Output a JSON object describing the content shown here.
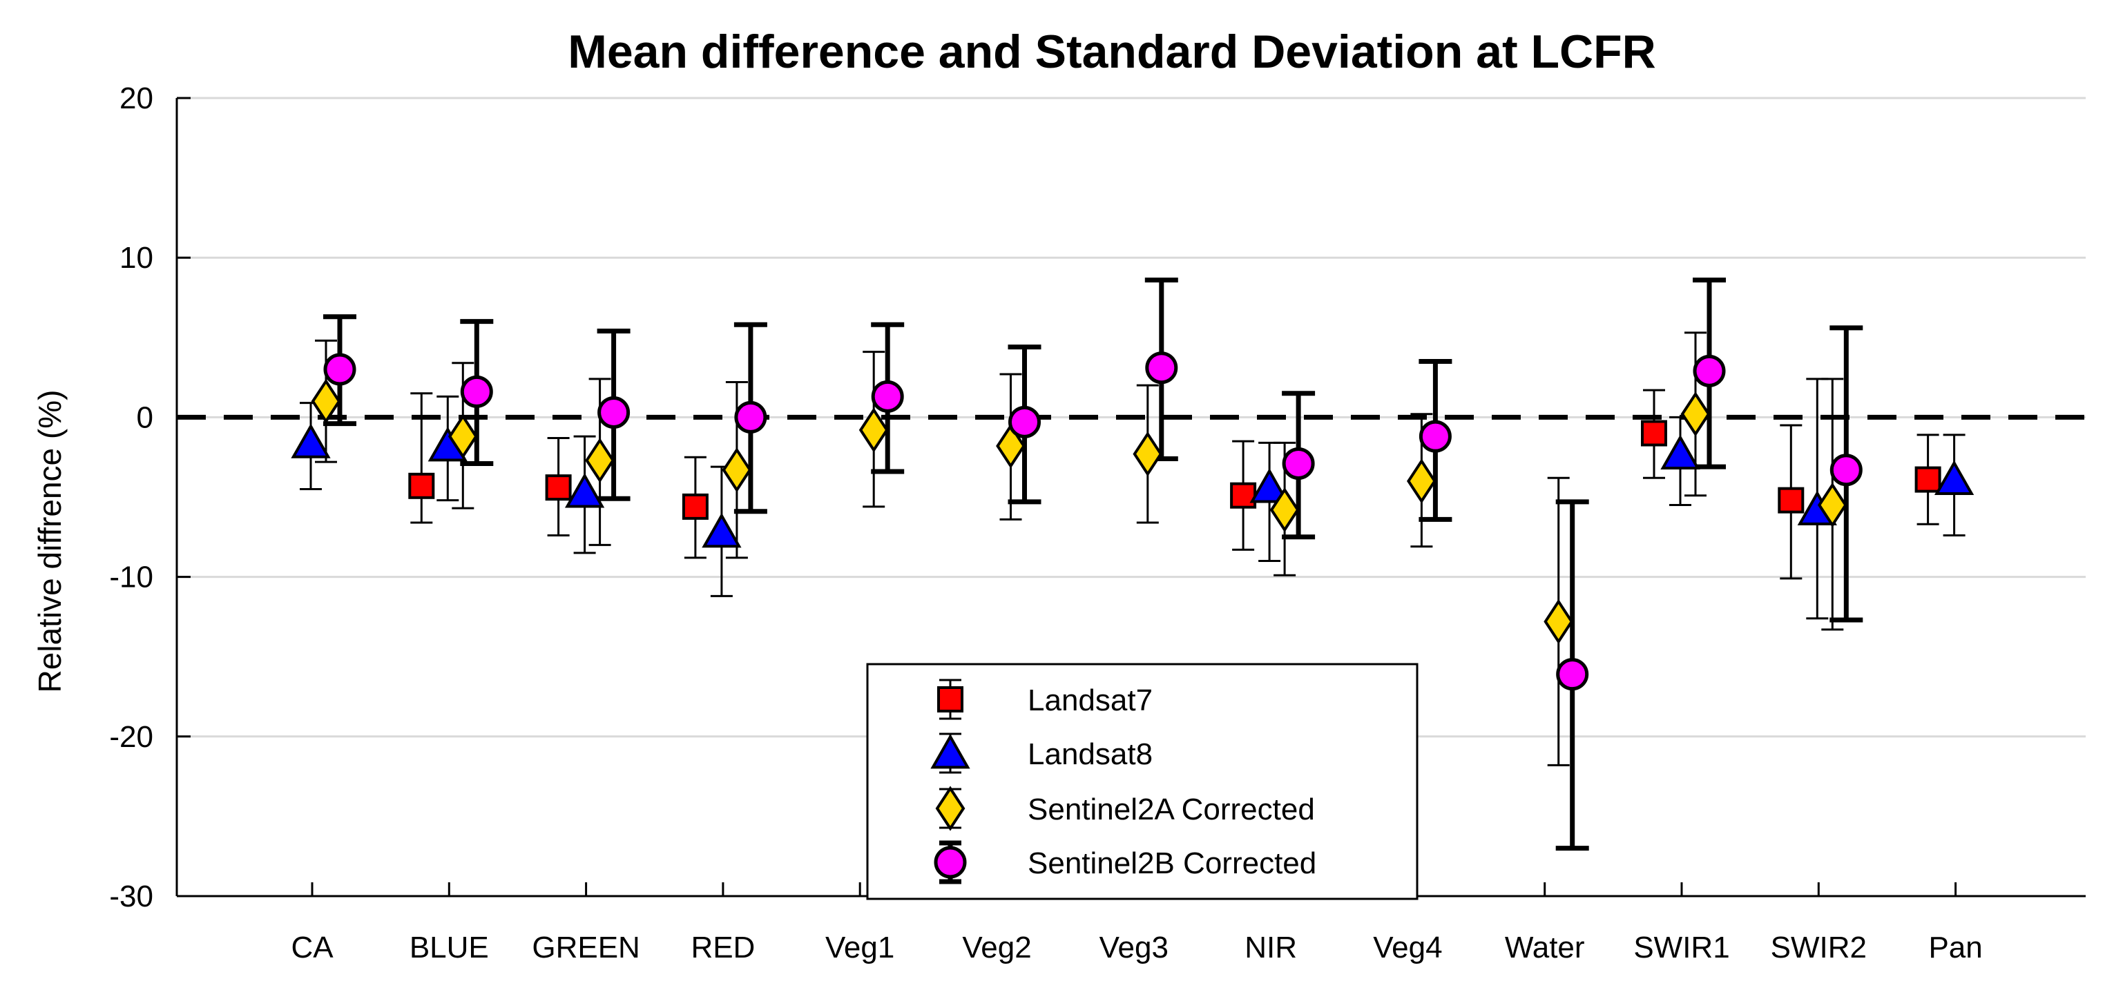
{
  "chart_data": {
    "type": "scatter",
    "title": "Mean difference and Standard Deviation at LCFR",
    "xlabel": "",
    "ylabel": "Relative diffrence (%)",
    "ylim": [
      -30,
      20
    ],
    "yticks": [
      -30,
      -20,
      -10,
      0,
      10,
      20
    ],
    "y_tick_labels": [
      "-30",
      "-20",
      "-10",
      "0",
      "10",
      "20"
    ],
    "grid": "horizontal",
    "reference_line": 0,
    "categories": [
      "CA",
      "BLUE",
      "GREEN",
      "RED",
      "Veg1",
      "Veg2",
      "Veg3",
      "NIR",
      "Veg4",
      "Water",
      "SWIR1",
      "SWIR2",
      "Pan"
    ],
    "legend_position": "bottom-center",
    "series": [
      {
        "name": "Landsat7",
        "marker": "square",
        "color": "#ff0000",
        "errorbar_style": "thin",
        "points": [
          {
            "category": "BLUE",
            "mean": -4.3,
            "upper": 1.5,
            "lower": -6.6
          },
          {
            "category": "GREEN",
            "mean": -4.4,
            "upper": -1.3,
            "lower": -7.4
          },
          {
            "category": "RED",
            "mean": -5.6,
            "upper": -2.5,
            "lower": -8.8
          },
          {
            "category": "NIR",
            "mean": -4.9,
            "upper": -1.5,
            "lower": -8.3
          },
          {
            "category": "SWIR1",
            "mean": -1.0,
            "upper": 1.7,
            "lower": -3.8
          },
          {
            "category": "SWIR2",
            "mean": -5.2,
            "upper": -0.5,
            "lower": -10.1
          },
          {
            "category": "Pan",
            "mean": -3.9,
            "upper": -1.1,
            "lower": -6.7
          }
        ]
      },
      {
        "name": "Landsat8",
        "marker": "triangle",
        "color": "#0000ff",
        "errorbar_style": "thin",
        "points": [
          {
            "category": "CA",
            "mean": -1.6,
            "upper": 0.9,
            "lower": -4.5
          },
          {
            "category": "BLUE",
            "mean": -1.8,
            "upper": 1.3,
            "lower": -5.2
          },
          {
            "category": "GREEN",
            "mean": -4.7,
            "upper": -1.2,
            "lower": -8.5
          },
          {
            "category": "RED",
            "mean": -7.2,
            "upper": -3.1,
            "lower": -11.2
          },
          {
            "category": "NIR",
            "mean": -4.4,
            "upper": -1.6,
            "lower": -9.0
          },
          {
            "category": "SWIR1",
            "mean": -2.3,
            "upper": 0.0,
            "lower": -5.5
          },
          {
            "category": "SWIR2",
            "mean": -5.8,
            "upper": 2.4,
            "lower": -12.6
          },
          {
            "category": "Pan",
            "mean": -3.9,
            "upper": -1.1,
            "lower": -7.4
          }
        ]
      },
      {
        "name": "Sentinel2A Corrected",
        "marker": "diamond",
        "color": "#ffd700",
        "errorbar_style": "thin",
        "points": [
          {
            "category": "CA",
            "mean": 1.0,
            "upper": 4.8,
            "lower": -2.8
          },
          {
            "category": "BLUE",
            "mean": -1.2,
            "upper": 3.4,
            "lower": -5.7
          },
          {
            "category": "GREEN",
            "mean": -2.7,
            "upper": 2.4,
            "lower": -8.0
          },
          {
            "category": "RED",
            "mean": -3.3,
            "upper": 2.2,
            "lower": -8.8
          },
          {
            "category": "Veg1",
            "mean": -0.8,
            "upper": 4.1,
            "lower": -5.6
          },
          {
            "category": "Veg2",
            "mean": -1.8,
            "upper": 2.7,
            "lower": -6.4
          },
          {
            "category": "Veg3",
            "mean": -2.3,
            "upper": 2.0,
            "lower": -6.6
          },
          {
            "category": "NIR",
            "mean": -5.8,
            "upper": -1.6,
            "lower": -9.9
          },
          {
            "category": "Veg4",
            "mean": -4.0,
            "upper": 0.2,
            "lower": -8.1
          },
          {
            "category": "Water",
            "mean": -12.8,
            "upper": -3.8,
            "lower": -21.8
          },
          {
            "category": "SWIR1",
            "mean": 0.2,
            "upper": 5.3,
            "lower": -4.9
          },
          {
            "category": "SWIR2",
            "mean": -5.5,
            "upper": 2.4,
            "lower": -13.3
          }
        ]
      },
      {
        "name": "Sentinel2B Corrected",
        "marker": "circle",
        "color": "#ff00ff",
        "errorbar_style": "thick",
        "points": [
          {
            "category": "CA",
            "mean": 3.0,
            "upper": 6.3,
            "lower": -0.4
          },
          {
            "category": "BLUE",
            "mean": 1.6,
            "upper": 6.0,
            "lower": -2.9
          },
          {
            "category": "GREEN",
            "mean": 0.3,
            "upper": 5.4,
            "lower": -5.1
          },
          {
            "category": "RED",
            "mean": 0.0,
            "upper": 5.8,
            "lower": -5.9
          },
          {
            "category": "Veg1",
            "mean": 1.3,
            "upper": 5.8,
            "lower": -3.4
          },
          {
            "category": "Veg2",
            "mean": -0.3,
            "upper": 4.4,
            "lower": -5.3
          },
          {
            "category": "Veg3",
            "mean": 3.1,
            "upper": 8.6,
            "lower": -2.6
          },
          {
            "category": "NIR",
            "mean": -2.9,
            "upper": 1.5,
            "lower": -7.5
          },
          {
            "category": "Veg4",
            "mean": -1.2,
            "upper": 3.5,
            "lower": -6.4
          },
          {
            "category": "Water",
            "mean": -16.1,
            "upper": -5.3,
            "lower": -27.0
          },
          {
            "category": "SWIR1",
            "mean": 2.9,
            "upper": 8.6,
            "lower": -3.1
          },
          {
            "category": "SWIR2",
            "mean": -3.3,
            "upper": 5.6,
            "lower": -12.7
          }
        ]
      }
    ]
  }
}
